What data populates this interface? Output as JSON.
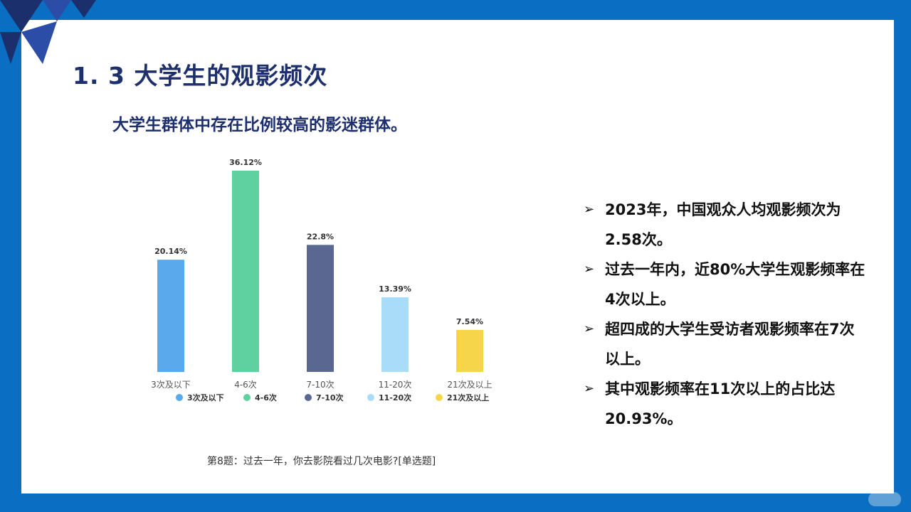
{
  "slide": {
    "title": "1. 3 大学生的观影频次",
    "subtitle": "大学生群体中存在比例较高的影迷群体。",
    "caption": "第8题：过去一年，你去影院看过几次电影?[单选题]",
    "bullets": [
      "2023年，中国观众人均观影频次为2.58次。",
      "过去一年内，近80%大学生观影频率在4次以上。",
      "超四成的大学生受访者观影频率在7次以上。",
      "其中观影频率在11次以上的占比达20.93%。"
    ],
    "bullet_icon": "arrow-right-icon"
  },
  "colors": {
    "frame": "#0a6fc2",
    "title": "#1e2f6e"
  },
  "chart_data": {
    "type": "bar",
    "categories": [
      "3次及以下",
      "4-6次",
      "7-10次",
      "11-20次",
      "21次及以上"
    ],
    "values": [
      20.14,
      36.12,
      22.8,
      13.39,
      7.54
    ],
    "value_labels": [
      "20.14%",
      "36.12%",
      "22.8%",
      "13.39%",
      "7.54%"
    ],
    "colors": [
      "#5aa9ec",
      "#5fd1a1",
      "#5a6791",
      "#a9dcf9",
      "#f7d54a"
    ],
    "legend": {
      "placement": "bottom",
      "entries": [
        "3次及以下",
        "4-6次",
        "7-10次",
        "11-20次",
        "21次及以上"
      ]
    },
    "ylim": [
      0,
      40
    ],
    "grid": false
  }
}
